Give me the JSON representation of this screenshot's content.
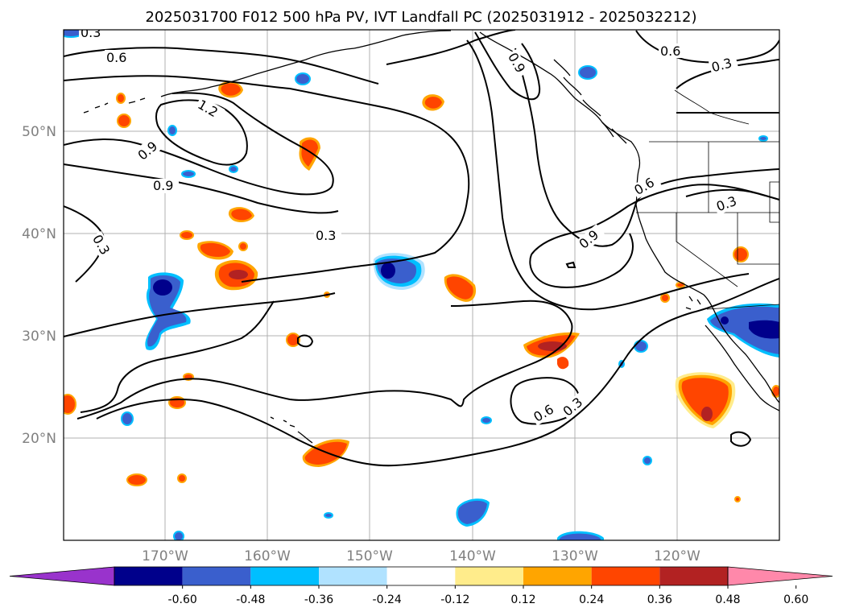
{
  "title": "2025031700 F012 500 hPa PV, IVT Landfall PC (2025031912 - 2025032212)",
  "lat_labels": [
    "50°N",
    "40°N",
    "30°N",
    "20°N"
  ],
  "lon_labels": [
    "170°W",
    "160°W",
    "150°W",
    "140°W",
    "130°W",
    "120°W"
  ],
  "contour_labels": [
    "0.3",
    "0.6",
    "0.9",
    "1.2",
    "0.9",
    "0.9",
    "0.3",
    "0.3",
    "0.9",
    "0.6",
    "0.6",
    "0.3",
    "0.3",
    "0.6",
    "0.3"
  ],
  "colorbar": {
    "ticks": [
      "-0.60",
      "-0.48",
      "-0.36",
      "-0.24",
      "-0.12",
      "0.12",
      "0.24",
      "0.36",
      "0.48",
      "0.60"
    ],
    "colors": [
      "#9933cc",
      "#00008b",
      "#3a5fcd",
      "#00bfff",
      "#b0e2ff",
      "#ffffff",
      "#ffec8b",
      "#ffa500",
      "#ff4500",
      "#b22222",
      "#ff88aa"
    ]
  },
  "map_colors": {
    "positive_core": "#ff4500",
    "positive_edge": "#ffa500",
    "positive_peak": "#b22222",
    "negative_core": "#3a5fcd",
    "negative_edge": "#00bfff",
    "negative_peak": "#00008b"
  }
}
